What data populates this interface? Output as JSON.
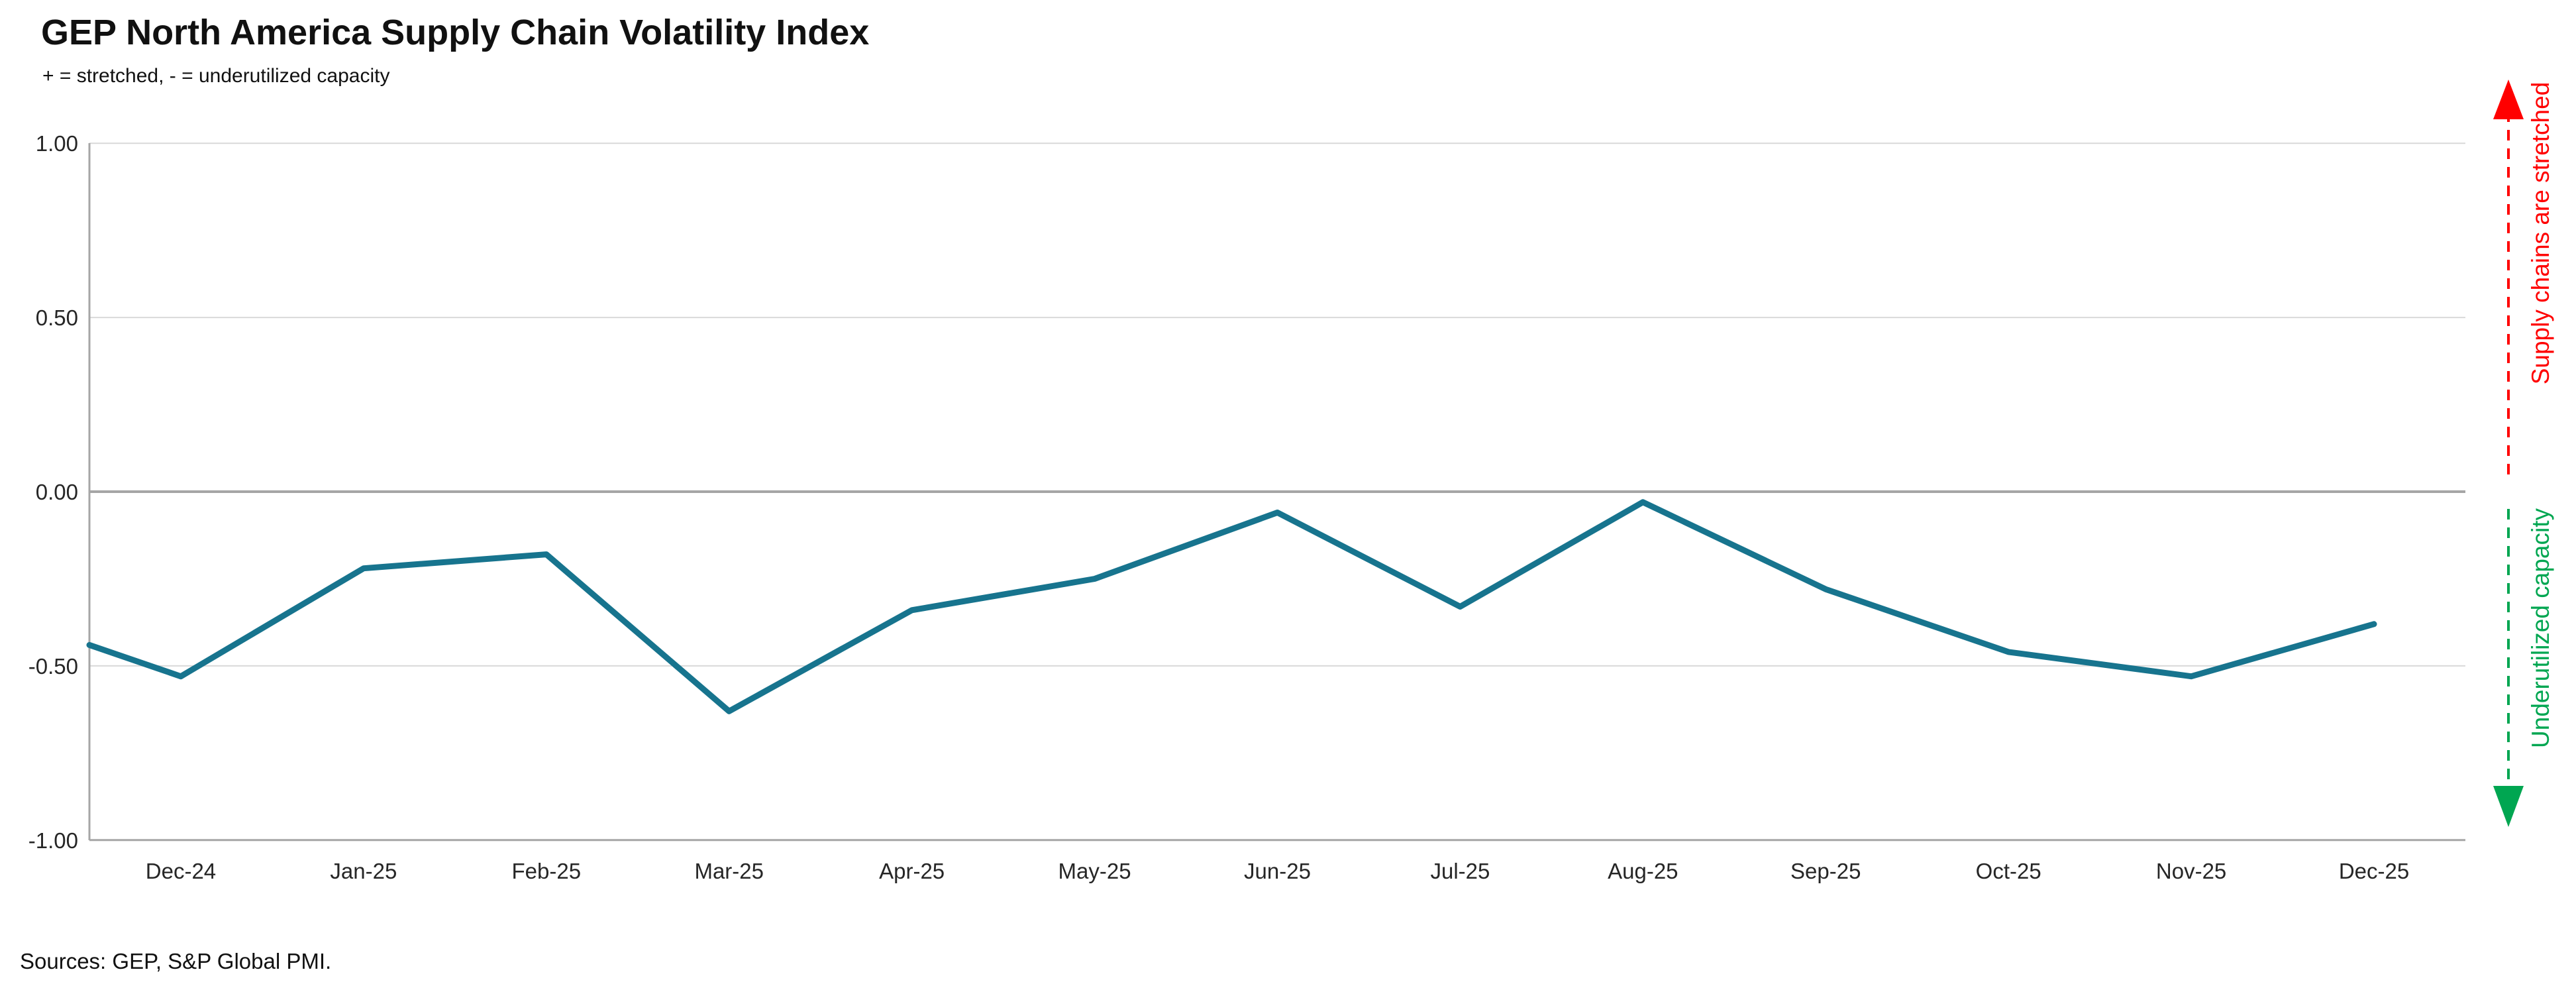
{
  "title": "GEP North America Supply Chain Volatility Index",
  "subtitle": "+ = stretched, - = underutilized capacity",
  "footer": "Sources: GEP, S&P Global PMI.",
  "colors": {
    "line": "#17748E",
    "gridline": "#D9D9D9",
    "axis": "#A6A6A6",
    "zero_line": "#A6A6A6",
    "tick_text": "#262626",
    "stretched_red": "#FF0000",
    "underutilized_green": "#00A651"
  },
  "chart_data": {
    "type": "line",
    "title": "GEP North America Supply Chain Volatility Index",
    "subtitle": "+ = stretched, - = underutilized capacity",
    "categories": [
      "Dec-24",
      "Jan-25",
      "Feb-25",
      "Mar-25",
      "Apr-25",
      "May-25",
      "Jun-25",
      "Jul-25",
      "Aug-25",
      "Sep-25",
      "Oct-25",
      "Nov-25",
      "Dec-25"
    ],
    "series": [
      {
        "name": "GEP North America Supply Chain Volatility Index",
        "values": [
          -0.53,
          -0.22,
          -0.18,
          -0.63,
          -0.34,
          -0.25,
          -0.06,
          -0.33,
          -0.03,
          -0.28,
          -0.46,
          -0.53,
          -0.38
        ]
      }
    ],
    "left_edge_value": -0.44,
    "xlabel": "",
    "ylabel": "",
    "ylim": [
      -1.0,
      1.0
    ],
    "yticks": [
      "1.00",
      "0.50",
      "0.00",
      "-0.50",
      "-1.00"
    ],
    "ytick_values": [
      1.0,
      0.5,
      0.0,
      -0.5,
      -1.0
    ],
    "grid": true,
    "legend_position": "none",
    "annotations": {
      "positive": {
        "label": "Supply chains are stretched",
        "color": "#FF0000",
        "direction": "up"
      },
      "negative": {
        "label": "Underutilized capacity",
        "color": "#00A651",
        "direction": "down"
      }
    }
  }
}
